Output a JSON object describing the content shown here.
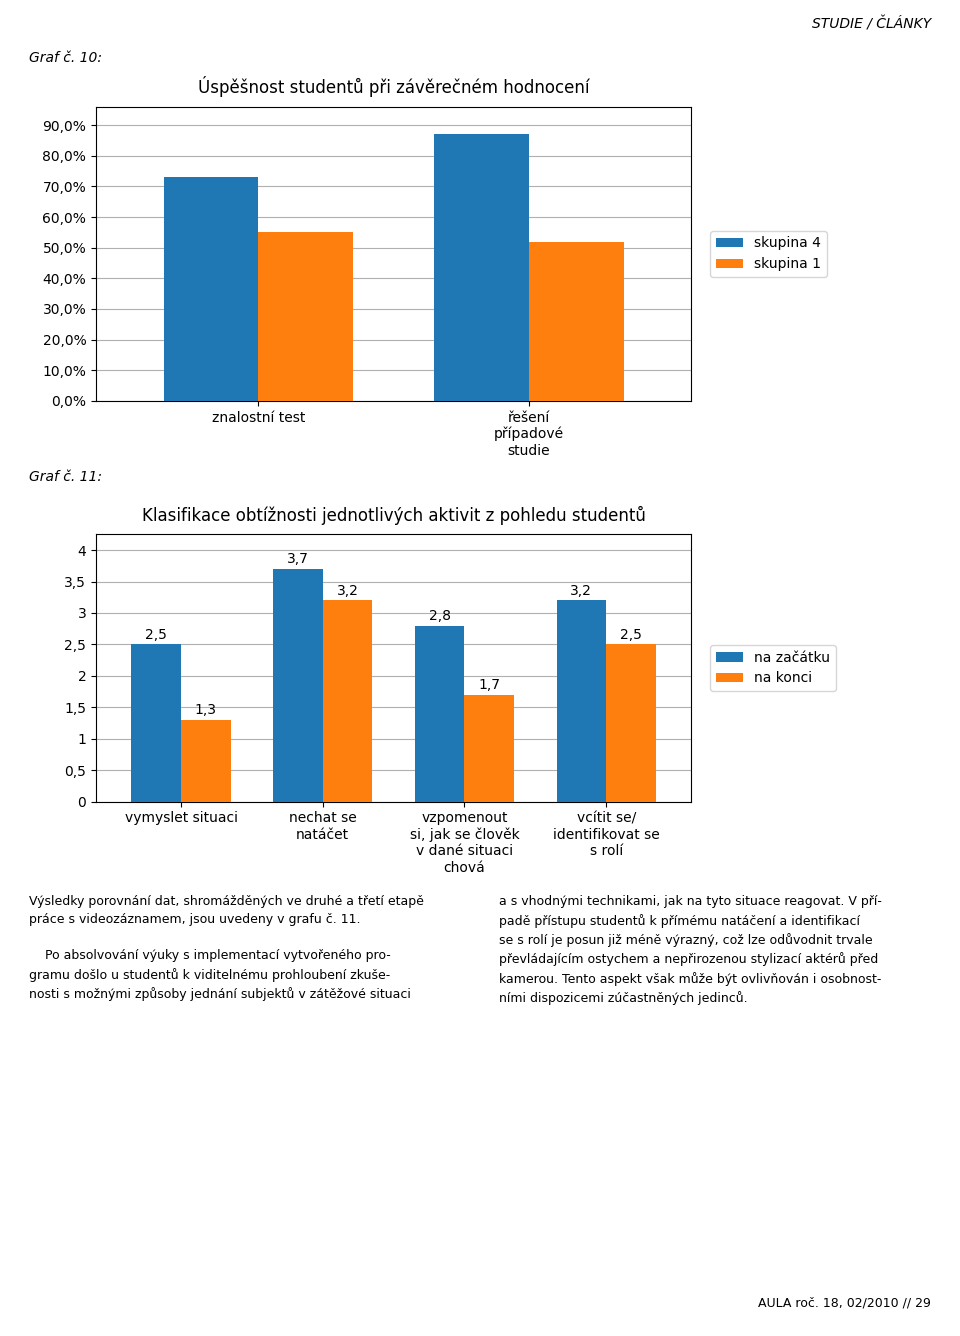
{
  "chart_data": [
    {
      "type": "bar",
      "title": "Úspěšnost studentů při závěrečném hodnocení",
      "annotations": [
        "Graf č. 10:"
      ],
      "categories": [
        "znalostní test",
        "řešení\npřípadové\nstudie"
      ],
      "series": [
        {
          "name": "skupina 4",
          "values": [
            0.73,
            0.87
          ]
        },
        {
          "name": "skupina 1",
          "values": [
            0.55,
            0.52
          ]
        }
      ],
      "ylim": [
        0,
        0.96
      ],
      "yticks": [
        {
          "value": 0.0,
          "label": "0,0%"
        },
        {
          "value": 0.1,
          "label": "10,0%"
        },
        {
          "value": 0.2,
          "label": "20,0%"
        },
        {
          "value": 0.3,
          "label": "30,0%"
        },
        {
          "value": 0.4,
          "label": "40,0%"
        },
        {
          "value": 0.5,
          "label": "50,0%"
        },
        {
          "value": 0.6,
          "label": "60,0%"
        },
        {
          "value": 0.7,
          "label": "70,0%"
        },
        {
          "value": 0.8,
          "label": "80,0%"
        },
        {
          "value": 0.9,
          "label": "90,0%"
        }
      ],
      "grid": true,
      "legend": "right"
    },
    {
      "type": "bar",
      "title": "Klasifikace obtížnosti jednotlivých aktivit z pohledu studentů",
      "annotations": [
        "Graf č. 11:"
      ],
      "categories": [
        "vymyslet situaci",
        "nechat se\nnatáčet",
        "vzpomenout\nsi, jak se člověk\nv dané situaci\nchová",
        "vcítit se/\nidentifikovat se\ns rolí"
      ],
      "series": [
        {
          "name": "na začátku",
          "values": [
            2.5,
            3.7,
            2.8,
            3.2
          ],
          "value_labels": [
            "2,5",
            "3,7",
            "2,8",
            "3,2"
          ]
        },
        {
          "name": "na konci",
          "values": [
            1.3,
            3.2,
            1.7,
            2.5
          ],
          "value_labels": [
            "1,3",
            "3,2",
            "1,7",
            "2,5"
          ]
        }
      ],
      "data_labels": true,
      "ylim": [
        0,
        4.25
      ],
      "yticks": [
        0,
        {
          "value": 0.5,
          "label": "0,5"
        },
        1,
        {
          "value": 1.5,
          "label": "1,5"
        },
        2,
        {
          "value": 2.5,
          "label": "2,5"
        },
        3,
        {
          "value": 3.5,
          "label": "3,5"
        },
        4
      ],
      "grid": true,
      "legend": "right"
    }
  ],
  "annotations": [
    "STUDIE / ČLÁNKY",
    "Výsledky porovnání dat, shromážděných ve druhé a třetí etapě\npráce s videozáznamem, jsou uvedeny v grafu č. 11.\n\n    Po absolvování výuky s implementací vytvořeného pro-\ngramu došlo u studentů k viditelnému prohloubení zkuše-\nnosti s možnými způsoby jednání subjektů v zátěžové situaci",
    "a s vhodnými technikami, jak na tyto situace reagovat. V pří-\npadě přístupu studentů k přímému natáčení a identifikací\nse s rolí je posun již méně výrazný, což lze odůvodnit trvale\npřevládajícím ostychem a nepřirozenou stylizací aktérů před\nkamerou. Tento aspekt však může být ovlivňován i osobnost-\nními dispozicemi zúčastněných jedinců.",
    "AULA roč. 18, 02/2010 // 29"
  ]
}
